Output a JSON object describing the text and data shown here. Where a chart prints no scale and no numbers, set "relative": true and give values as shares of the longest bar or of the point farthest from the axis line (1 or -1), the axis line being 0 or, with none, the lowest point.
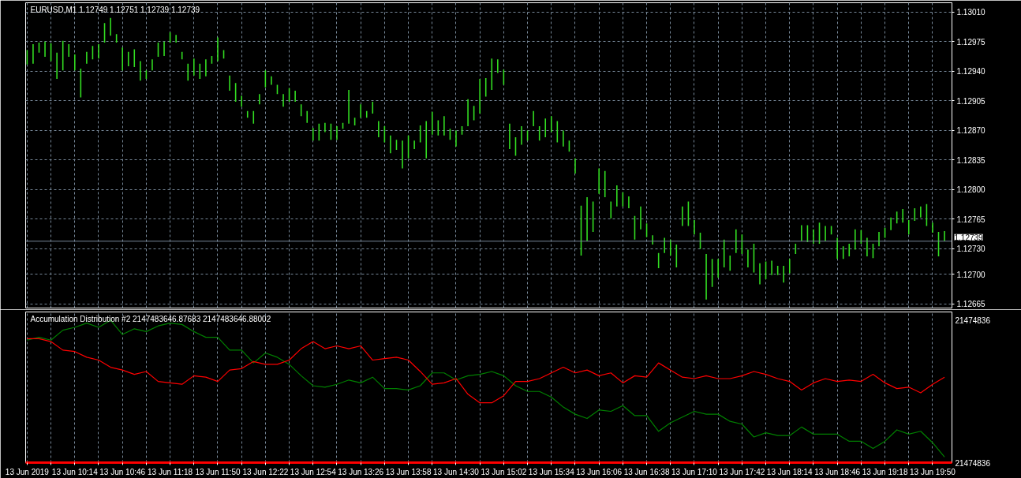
{
  "chart_data": [
    {
      "type": "bar",
      "title": "EURUSD,M1 1.12749 1.12751 1.12739 1.12739",
      "color": "#33e022",
      "x": [
        "2019-06-13T09:42",
        "2019-06-13T09:46",
        "2019-06-13T09:50",
        "2019-06-13T09:54",
        "2019-06-13T09:58",
        "2019-06-13T10:02",
        "2019-06-13T10:06",
        "2019-06-13T10:10",
        "2019-06-13T10:14",
        "2019-06-13T10:18",
        "2019-06-13T10:22",
        "2019-06-13T10:26",
        "2019-06-13T10:30",
        "2019-06-13T10:34",
        "2019-06-13T10:38",
        "2019-06-13T10:42",
        "2019-06-13T10:46",
        "2019-06-13T10:50",
        "2019-06-13T10:54",
        "2019-06-13T10:58",
        "2019-06-13T11:02",
        "2019-06-13T11:06",
        "2019-06-13T11:10",
        "2019-06-13T11:14",
        "2019-06-13T11:18",
        "2019-06-13T11:22",
        "2019-06-13T11:26",
        "2019-06-13T11:30",
        "2019-06-13T11:34",
        "2019-06-13T11:38",
        "2019-06-13T11:42",
        "2019-06-13T11:46",
        "2019-06-13T11:50",
        "2019-06-13T11:54",
        "2019-06-13T11:58",
        "2019-06-13T12:02",
        "2019-06-13T12:06",
        "2019-06-13T12:10",
        "2019-06-13T12:14",
        "2019-06-13T12:18",
        "2019-06-13T12:22",
        "2019-06-13T12:26",
        "2019-06-13T12:30",
        "2019-06-13T12:34",
        "2019-06-13T12:38",
        "2019-06-13T12:42",
        "2019-06-13T12:46",
        "2019-06-13T12:50",
        "2019-06-13T12:54",
        "2019-06-13T12:58",
        "2019-06-13T13:02",
        "2019-06-13T13:06",
        "2019-06-13T13:10",
        "2019-06-13T13:14",
        "2019-06-13T13:18",
        "2019-06-13T13:22",
        "2019-06-13T13:26",
        "2019-06-13T13:30",
        "2019-06-13T13:34",
        "2019-06-13T13:38",
        "2019-06-13T13:42",
        "2019-06-13T13:46",
        "2019-06-13T13:50",
        "2019-06-13T13:54",
        "2019-06-13T13:58",
        "2019-06-13T14:02",
        "2019-06-13T14:06",
        "2019-06-13T14:10",
        "2019-06-13T14:14",
        "2019-06-13T14:18",
        "2019-06-13T14:22",
        "2019-06-13T14:26",
        "2019-06-13T14:30",
        "2019-06-13T14:34",
        "2019-06-13T14:38",
        "2019-06-13T14:42",
        "2019-06-13T14:46",
        "2019-06-13T14:50",
        "2019-06-13T14:54",
        "2019-06-13T14:58",
        "2019-06-13T15:02",
        "2019-06-13T15:06",
        "2019-06-13T15:10",
        "2019-06-13T15:14",
        "2019-06-13T15:18",
        "2019-06-13T15:22",
        "2019-06-13T15:26",
        "2019-06-13T15:30",
        "2019-06-13T15:34",
        "2019-06-13T15:38",
        "2019-06-13T15:42",
        "2019-06-13T15:46",
        "2019-06-13T15:50",
        "2019-06-13T15:54",
        "2019-06-13T15:58",
        "2019-06-13T16:02",
        "2019-06-13T16:06",
        "2019-06-13T16:10",
        "2019-06-13T16:14",
        "2019-06-13T16:18",
        "2019-06-13T16:22",
        "2019-06-13T16:26",
        "2019-06-13T16:30",
        "2019-06-13T16:34",
        "2019-06-13T16:38",
        "2019-06-13T16:42",
        "2019-06-13T16:46",
        "2019-06-13T16:50",
        "2019-06-13T16:54",
        "2019-06-13T16:58",
        "2019-06-13T17:02",
        "2019-06-13T17:06",
        "2019-06-13T17:10",
        "2019-06-13T17:14",
        "2019-06-13T17:18",
        "2019-06-13T17:22",
        "2019-06-13T17:26",
        "2019-06-13T17:30",
        "2019-06-13T17:34",
        "2019-06-13T17:38",
        "2019-06-13T17:42",
        "2019-06-13T17:46",
        "2019-06-13T17:50",
        "2019-06-13T17:54",
        "2019-06-13T17:58",
        "2019-06-13T18:02",
        "2019-06-13T18:06",
        "2019-06-13T18:10",
        "2019-06-13T18:14",
        "2019-06-13T18:18",
        "2019-06-13T18:22",
        "2019-06-13T18:26",
        "2019-06-13T18:30",
        "2019-06-13T18:34",
        "2019-06-13T18:38",
        "2019-06-13T18:42",
        "2019-06-13T18:46",
        "2019-06-13T18:50",
        "2019-06-13T18:54",
        "2019-06-13T18:58",
        "2019-06-13T19:02",
        "2019-06-13T19:06",
        "2019-06-13T19:10",
        "2019-06-13T19:14",
        "2019-06-13T19:18",
        "2019-06-13T19:22",
        "2019-06-13T19:26",
        "2019-06-13T19:30",
        "2019-06-13T19:34",
        "2019-06-13T19:38",
        "2019-06-13T19:42",
        "2019-06-13T19:46",
        "2019-06-13T19:50",
        "2019-06-13T19:54",
        "2019-06-13T19:58"
      ],
      "base": [
        1.12948,
        1.12949,
        1.12962,
        1.12957,
        1.12952,
        1.12931,
        1.12941,
        1.12957,
        1.12941,
        1.12909,
        1.12949,
        1.12954,
        1.12955,
        1.12974,
        1.12982,
        1.12974,
        1.12941,
        1.12946,
        1.12945,
        1.12929,
        1.12931,
        1.12941,
        1.12957,
        1.12958,
        1.12974,
        1.12974,
        1.12954,
        1.12929,
        1.12935,
        1.12931,
        1.12934,
        1.12949,
        1.12952,
        1.12955,
        1.12917,
        1.12904,
        1.12898,
        1.12885,
        1.12878,
        1.12901,
        1.12921,
        1.12924,
        1.12913,
        1.12898,
        1.12904,
        1.12904,
        1.12887,
        1.12879,
        1.12858,
        1.12858,
        1.12868,
        1.12859,
        1.12859,
        1.12872,
        1.12878,
        1.12876,
        1.12885,
        1.12885,
        1.1289,
        1.12862,
        1.12856,
        1.12843,
        1.12847,
        1.12825,
        1.12837,
        1.12848,
        1.12856,
        1.12837,
        1.12865,
        1.12864,
        1.12864,
        1.12859,
        1.12851,
        1.12865,
        1.12875,
        1.12882,
        1.1289,
        1.1291,
        1.12918,
        1.12938,
        1.12924,
        1.12848,
        1.1284,
        1.12853,
        1.12858,
        1.12875,
        1.12858,
        1.12862,
        1.12868,
        1.12856,
        1.12851,
        1.12845,
        1.12819,
        1.12722,
        1.12739,
        1.1275,
        1.12795,
        1.12791,
        1.12766,
        1.1278,
        1.1278,
        1.12778,
        1.12741,
        1.12753,
        1.12744,
        1.12735,
        1.12707,
        1.12725,
        1.12722,
        1.12708,
        1.12757,
        1.12757,
        1.12747,
        1.1273,
        1.1267,
        1.12685,
        1.12696,
        1.12708,
        1.12704,
        1.12725,
        1.12724,
        1.12708,
        1.12702,
        1.12688,
        1.12694,
        1.12699,
        1.12699,
        1.1269,
        1.12701,
        1.12724,
        1.12739,
        1.12738,
        1.12736,
        1.12736,
        1.12739,
        1.12747,
        1.12718,
        1.12718,
        1.12721,
        1.12729,
        1.12736,
        1.12721,
        1.12719,
        1.12733,
        1.12743,
        1.12752,
        1.1276,
        1.12761,
        1.12747,
        1.12763,
        1.12767,
        1.12757,
        1.12749,
        1.12721,
        1.12739
      ],
      "values": [
        0.00017,
        0.00023,
        0.00012,
        0.00018,
        0.00021,
        0.00031,
        0.00035,
        0.00015,
        0.00019,
        0.00034,
        0.00014,
        0.00016,
        0.00017,
        0.00023,
        0.00021,
        0.0001,
        0.00027,
        0.00017,
        0.00021,
        0.00023,
        0.0001,
        0.00013,
        0.00017,
        0.00017,
        0.00012,
        9e-05,
        9e-05,
        0.0002,
        0.0002,
        0.00018,
        0.0002,
        9e-05,
        0.00028,
        0.0001,
        0.00018,
        0.00022,
        0.00013,
        8e-05,
        0.00015,
        0.00012,
        0.0002,
        0.0001,
        0.00011,
        0.00015,
        0.00016,
        0.00013,
        0.00014,
        0.00014,
        0.00015,
        0.0002,
        0.00011,
        0.00019,
        0.00016,
        7e-05,
        0.0004,
        9e-05,
        0.00016,
        8e-05,
        0.00014,
        0.00019,
        0.00019,
        0.00021,
        0.00012,
        0.00033,
        0.00027,
        0.0001,
        0.0002,
        0.00044,
        0.00027,
        0.00018,
        0.00023,
        0.00013,
        0.00019,
        0.0001,
        0.00032,
        0.00017,
        0.00041,
        0.00022,
        0.00037,
        0.00016,
        0.00018,
        0.0003,
        0.00022,
        0.00022,
        0.00012,
        0.00018,
        0.00017,
        0.00022,
        0.00019,
        0.00025,
        0.00019,
        0.00013,
        0.00018,
        0.00059,
        0.00052,
        0.00036,
        0.0003,
        0.00031,
        0.0002,
        0.00025,
        0.00017,
        0.00014,
        0.00028,
        0.00027,
        0.00016,
        0.00011,
        0.00018,
        0.00018,
        0.00019,
        0.00027,
        0.00023,
        0.00029,
        0.00017,
        0.00019,
        0.00054,
        0.00033,
        0.00022,
        0.00033,
        0.00018,
        0.00028,
        0.00023,
        0.00021,
        0.00034,
        0.00025,
        0.00021,
        0.00017,
        0.00011,
        0.0002,
        0.00017,
        0.00012,
        0.00019,
        0.0002,
        0.00017,
        0.00025,
        0.00018,
        0.0001,
        0.00025,
        0.00015,
        0.00015,
        0.00024,
        0.00016,
        0.00022,
        0.00017,
        0.00017,
        0.00012,
        0.00015,
        0.00014,
        0.00016,
        0.00017,
        0.00015,
        0.00013,
        0.00026,
        0.00012,
        0.00029,
        0.00012
      ],
      "xlim": [
        "2019-06-13T09:41",
        "2019-06-13T20:03"
      ],
      "xticks": [
        "2019-06-13T09:42",
        "2019-06-13T09:58",
        "2019-06-13T10:14",
        "2019-06-13T10:30",
        "2019-06-13T10:46",
        "2019-06-13T11:02",
        "2019-06-13T11:18",
        "2019-06-13T11:34",
        "2019-06-13T11:50",
        "2019-06-13T12:06",
        "2019-06-13T12:22",
        "2019-06-13T12:38",
        "2019-06-13T12:54",
        "2019-06-13T13:10",
        "2019-06-13T13:26",
        "2019-06-13T13:42",
        "2019-06-13T13:58",
        "2019-06-13T14:14",
        "2019-06-13T14:30",
        "2019-06-13T14:46",
        "2019-06-13T15:02",
        "2019-06-13T15:18",
        "2019-06-13T15:34",
        "2019-06-13T15:50",
        "2019-06-13T16:06",
        "2019-06-13T16:22",
        "2019-06-13T16:38",
        "2019-06-13T16:54",
        "2019-06-13T17:10",
        "2019-06-13T17:26",
        "2019-06-13T17:42",
        "2019-06-13T17:58",
        "2019-06-13T18:14",
        "2019-06-13T18:30",
        "2019-06-13T18:46",
        "2019-06-13T19:02",
        "2019-06-13T19:18",
        "2019-06-13T19:34",
        "2019-06-13T19:50"
      ],
      "ylim": [
        1.1266,
        1.13021
      ],
      "yticks": [
        {
          "value": 1.1301,
          "label": "1.13010"
        },
        1.12975,
        {
          "value": 1.1294,
          "label": "1.12940"
        },
        1.12905,
        {
          "value": 1.1287,
          "label": "1.12870"
        },
        1.12835,
        {
          "value": 1.128,
          "label": "1.12800"
        },
        1.12765,
        {
          "value": 1.1273,
          "label": "1.12730"
        },
        {
          "value": 1.127,
          "label": "1.12700"
        },
        1.12665
      ],
      "ref_lines": [
        {
          "axis": "y",
          "value": 1.12739,
          "label": "1.12739",
          "color": "#778899"
        }
      ],
      "grid": true,
      "tick_labels": "y"
    },
    {
      "type": "line",
      "title": "Accumulation Distribution #2 2147483646.87683 2147483646.88002",
      "relative": true,
      "x": [
        "2019-06-13T09:42",
        "2019-06-13T09:50",
        "2019-06-13T09:58",
        "2019-06-13T10:06",
        "2019-06-13T10:14",
        "2019-06-13T10:22",
        "2019-06-13T10:30",
        "2019-06-13T10:38",
        "2019-06-13T10:46",
        "2019-06-13T10:54",
        "2019-06-13T11:02",
        "2019-06-13T11:10",
        "2019-06-13T11:18",
        "2019-06-13T11:26",
        "2019-06-13T11:34",
        "2019-06-13T11:42",
        "2019-06-13T11:50",
        "2019-06-13T11:58",
        "2019-06-13T12:06",
        "2019-06-13T12:14",
        "2019-06-13T12:22",
        "2019-06-13T12:30",
        "2019-06-13T12:38",
        "2019-06-13T12:46",
        "2019-06-13T12:54",
        "2019-06-13T13:02",
        "2019-06-13T13:10",
        "2019-06-13T13:18",
        "2019-06-13T13:26",
        "2019-06-13T13:34",
        "2019-06-13T13:42",
        "2019-06-13T13:50",
        "2019-06-13T13:58",
        "2019-06-13T14:06",
        "2019-06-13T14:14",
        "2019-06-13T14:22",
        "2019-06-13T14:30",
        "2019-06-13T14:38",
        "2019-06-13T14:46",
        "2019-06-13T14:54",
        "2019-06-13T15:02",
        "2019-06-13T15:10",
        "2019-06-13T15:18",
        "2019-06-13T15:26",
        "2019-06-13T15:34",
        "2019-06-13T15:42",
        "2019-06-13T15:50",
        "2019-06-13T15:58",
        "2019-06-13T16:06",
        "2019-06-13T16:14",
        "2019-06-13T16:22",
        "2019-06-13T16:30",
        "2019-06-13T16:38",
        "2019-06-13T16:46",
        "2019-06-13T16:54",
        "2019-06-13T17:02",
        "2019-06-13T17:10",
        "2019-06-13T17:18",
        "2019-06-13T17:26",
        "2019-06-13T17:34",
        "2019-06-13T17:42",
        "2019-06-13T17:50",
        "2019-06-13T17:58",
        "2019-06-13T18:06",
        "2019-06-13T18:14",
        "2019-06-13T18:22",
        "2019-06-13T18:30",
        "2019-06-13T18:38",
        "2019-06-13T18:46",
        "2019-06-13T18:54",
        "2019-06-13T19:02",
        "2019-06-13T19:10",
        "2019-06-13T19:18",
        "2019-06-13T19:26",
        "2019-06-13T19:34",
        "2019-06-13T19:42",
        "2019-06-13T19:50",
        "2019-06-13T19:58"
      ],
      "series": [
        {
          "color": "#008000",
          "values": [
            0.86,
            0.88,
            0.86,
            0.93,
            0.95,
            0.98,
            0.95,
            1,
            0.9,
            0.94,
            0.92,
            0.96,
            0.98,
            0.97,
            0.92,
            0.88,
            0.88,
            0.79,
            0.79,
            0.7,
            0.77,
            0.74,
            0.69,
            0.61,
            0.54,
            0.53,
            0.55,
            0.58,
            0.56,
            0.6,
            0.52,
            0.52,
            0.51,
            0.54,
            0.63,
            0.63,
            0.58,
            0.61,
            0.62,
            0.64,
            0.61,
            0.54,
            0.5,
            0.5,
            0.46,
            0.39,
            0.34,
            0.31,
            0.37,
            0.36,
            0.4,
            0.33,
            0.33,
            0.22,
            0.28,
            0.32,
            0.36,
            0.34,
            0.34,
            0.29,
            0.27,
            0.18,
            0.21,
            0.19,
            0.19,
            0.25,
            0.2,
            0.2,
            0.2,
            0.15,
            0.15,
            0.1,
            0.15,
            0.23,
            0.2,
            0.22,
            0.14,
            0.04
          ]
        },
        {
          "color": "#ff0000",
          "values": [
            0.87,
            0.87,
            0.85,
            0.79,
            0.78,
            0.74,
            0.72,
            0.67,
            0.65,
            0.62,
            0.64,
            0.57,
            0.56,
            0.55,
            0.61,
            0.6,
            0.57,
            0.65,
            0.66,
            0.71,
            0.69,
            0.69,
            0.72,
            0.8,
            0.85,
            0.8,
            0.82,
            0.8,
            0.82,
            0.72,
            0.73,
            0.74,
            0.72,
            0.64,
            0.55,
            0.56,
            0.59,
            0.48,
            0.42,
            0.42,
            0.47,
            0.57,
            0.57,
            0.59,
            0.63,
            0.67,
            0.63,
            0.65,
            0.61,
            0.63,
            0.56,
            0.61,
            0.6,
            0.7,
            0.65,
            0.6,
            0.59,
            0.61,
            0.59,
            0.59,
            0.61,
            0.64,
            0.62,
            0.59,
            0.57,
            0.51,
            0.56,
            0.59,
            0.57,
            0.58,
            0.57,
            0.62,
            0.56,
            0.52,
            0.53,
            0.49,
            0.55,
            0.6
          ]
        }
      ],
      "xlim": [
        "2019-06-13T09:41",
        "2019-06-13T20:03"
      ],
      "xticks": [
        {
          "value": "2019-06-13T09:42",
          "label": "13 Jun 2019"
        },
        {
          "value": "2019-06-13T09:58",
          "label": null
        },
        {
          "value": "2019-06-13T10:14",
          "label": "13 Jun 10:14"
        },
        {
          "value": "2019-06-13T10:30",
          "label": null
        },
        {
          "value": "2019-06-13T10:46",
          "label": "13 Jun 10:46"
        },
        {
          "value": "2019-06-13T11:02",
          "label": null
        },
        {
          "value": "2019-06-13T11:18",
          "label": "13 Jun 11:18"
        },
        {
          "value": "2019-06-13T11:34",
          "label": null
        },
        {
          "value": "2019-06-13T11:50",
          "label": "13 Jun 11:50"
        },
        {
          "value": "2019-06-13T12:06",
          "label": null
        },
        {
          "value": "2019-06-13T12:22",
          "label": "13 Jun 12:22"
        },
        {
          "value": "2019-06-13T12:38",
          "label": null
        },
        {
          "value": "2019-06-13T12:54",
          "label": "13 Jun 12:54"
        },
        {
          "value": "2019-06-13T13:10",
          "label": null
        },
        {
          "value": "2019-06-13T13:26",
          "label": "13 Jun 13:26"
        },
        {
          "value": "2019-06-13T13:42",
          "label": null
        },
        {
          "value": "2019-06-13T13:58",
          "label": "13 Jun 13:58"
        },
        {
          "value": "2019-06-13T14:14",
          "label": null
        },
        {
          "value": "2019-06-13T14:30",
          "label": "13 Jun 14:30"
        },
        {
          "value": "2019-06-13T14:46",
          "label": null
        },
        {
          "value": "2019-06-13T15:02",
          "label": "13 Jun 15:02"
        },
        {
          "value": "2019-06-13T15:18",
          "label": null
        },
        {
          "value": "2019-06-13T15:34",
          "label": "13 Jun 15:34"
        },
        {
          "value": "2019-06-13T15:50",
          "label": null
        },
        {
          "value": "2019-06-13T16:06",
          "label": "13 Jun 16:06"
        },
        {
          "value": "2019-06-13T16:22",
          "label": null
        },
        {
          "value": "2019-06-13T16:38",
          "label": "13 Jun 16:38"
        },
        {
          "value": "2019-06-13T16:54",
          "label": null
        },
        {
          "value": "2019-06-13T17:10",
          "label": "13 Jun 17:10"
        },
        {
          "value": "2019-06-13T17:26",
          "label": null
        },
        {
          "value": "2019-06-13T17:42",
          "label": "13 Jun 17:42"
        },
        {
          "value": "2019-06-13T17:58",
          "label": null
        },
        {
          "value": "2019-06-13T18:14",
          "label": "13 Jun 18:14"
        },
        {
          "value": "2019-06-13T18:30",
          "label": null
        },
        {
          "value": "2019-06-13T18:46",
          "label": "13 Jun 18:46"
        },
        {
          "value": "2019-06-13T19:02",
          "label": null
        },
        {
          "value": "2019-06-13T19:18",
          "label": "13 Jun 19:18"
        },
        {
          "value": "2019-06-13T19:34",
          "label": null
        },
        {
          "value": "2019-06-13T19:50",
          "label": "13 Jun 19:50"
        }
      ],
      "annotations": [
        "21474836",
        "21474836"
      ],
      "grid": "x"
    }
  ]
}
